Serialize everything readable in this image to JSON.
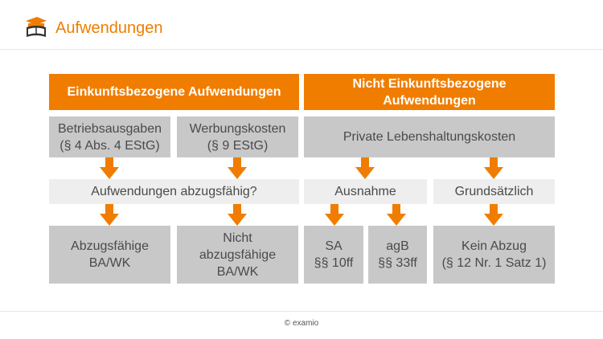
{
  "header": {
    "title": "Aufwendungen",
    "logo_icon": "graduation-cap-book-icon"
  },
  "colors": {
    "accent": "#f07d00",
    "box_gray": "#c8c8c8",
    "box_light": "#eeeeee"
  },
  "diagram": {
    "left_header": "Einkunftsbezogene Aufwendungen",
    "right_header_line1": "Nicht Einkunftsbezogene",
    "right_header_line2": "Aufwendungen",
    "betriebsausgaben_line1": "Betriebsausgaben",
    "betriebsausgaben_line2": "(§ 4 Abs. 4 EStG)",
    "werbungskosten_line1": "Werbungskosten",
    "werbungskosten_line2": "(§ 9 EStG)",
    "private_kosten": "Private Lebenshaltungskosten",
    "question": "Aufwendungen abzugsfähig?",
    "ausnahme": "Ausnahme",
    "grundsaetzlich": "Grundsätzlich",
    "abzugsfaehig_line1": "Abzugsfähige",
    "abzugsfaehig_line2": "BA/WK",
    "nicht_line1": "Nicht",
    "nicht_line2": "abzugsfähige",
    "nicht_line3": "BA/WK",
    "sa_line1": "SA",
    "sa_line2": "§§ 10ff",
    "agb_line1": "agB",
    "agb_line2": "§§ 33ff",
    "kein_line1": "Kein Abzug",
    "kein_line2": "(§ 12 Nr. 1 Satz 1)"
  },
  "footer": {
    "copyright": "© examio"
  }
}
